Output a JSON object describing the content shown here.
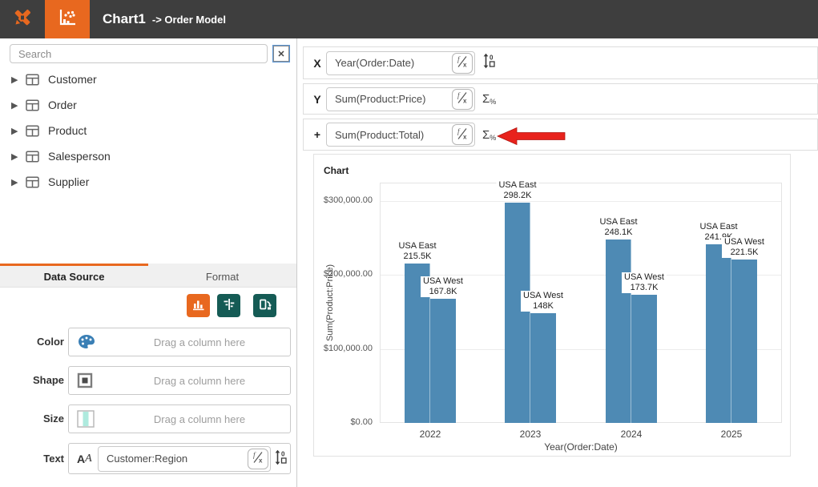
{
  "header": {
    "title": "Chart1",
    "subtitle": "-> Order Model"
  },
  "sidebar": {
    "search_placeholder": "Search",
    "close_label": "✕",
    "tables": [
      {
        "label": "Customer"
      },
      {
        "label": "Order"
      },
      {
        "label": "Product"
      },
      {
        "label": "Salesperson"
      },
      {
        "label": "Supplier"
      }
    ],
    "tabs": [
      {
        "label": "Data Source",
        "active": true
      },
      {
        "label": "Format",
        "active": false
      }
    ],
    "bindings": [
      {
        "label": "Color",
        "placeholder": "Drag a column here"
      },
      {
        "label": "Shape",
        "placeholder": "Drag a column here"
      },
      {
        "label": "Size",
        "placeholder": "Drag a column here"
      },
      {
        "label": "Text",
        "value": "Customer:Region"
      }
    ]
  },
  "encodings": [
    {
      "axis": "X",
      "value": "Year(Order:Date)"
    },
    {
      "axis": "Y",
      "value": "Sum(Product:Price)"
    },
    {
      "axis": "+",
      "value": "Sum(Product:Total)"
    }
  ],
  "chart": {
    "panel_title": "Chart"
  },
  "chart_data": {
    "type": "bar",
    "title": "Chart",
    "categories": [
      "2022",
      "2023",
      "2024",
      "2025"
    ],
    "series": [
      {
        "name": "USA East",
        "values": [
          215500,
          298200,
          248100,
          241900
        ],
        "labels": [
          "215.5K",
          "298.2K",
          "248.1K",
          "241.9K"
        ]
      },
      {
        "name": "USA West",
        "values": [
          167800,
          148000,
          173700,
          221500
        ],
        "labels": [
          "167.8K",
          "148K",
          "173.7K",
          "221.5K"
        ]
      }
    ],
    "xlabel": "Year(Order:Date)",
    "ylabel": "Sum(Product:Price)",
    "yticks": [
      {
        "value": 0,
        "label": "$0.00"
      },
      {
        "value": 100000,
        "label": "$100,000.00"
      },
      {
        "value": 200000,
        "label": "$200,000.00"
      },
      {
        "value": 300000,
        "label": "$300,000.00"
      }
    ],
    "ylim": [
      0,
      325000
    ],
    "bar_color": "#4e8ab4",
    "grid": "horizontal",
    "legend": "none",
    "label_position": "above-bars"
  },
  "icons": {
    "logo": "crossed-tools-icon",
    "chart_tool": "scatter-bar-chart-icon",
    "table": "table-icon",
    "fx": "formula-icon",
    "sort": "sort-values-icon",
    "aggregate": "sigma-percent-icon",
    "color": "palette-icon",
    "shape": "square-icon",
    "size": "size-bar-icon",
    "text": "font-icon",
    "annotation": "red-arrow"
  },
  "colors": {
    "header_bg": "#3e3e3e",
    "accent_orange": "#e8681f",
    "teal": "#155b55",
    "bar_blue": "#4e8ab4",
    "annotation_red": "#e8221c"
  }
}
